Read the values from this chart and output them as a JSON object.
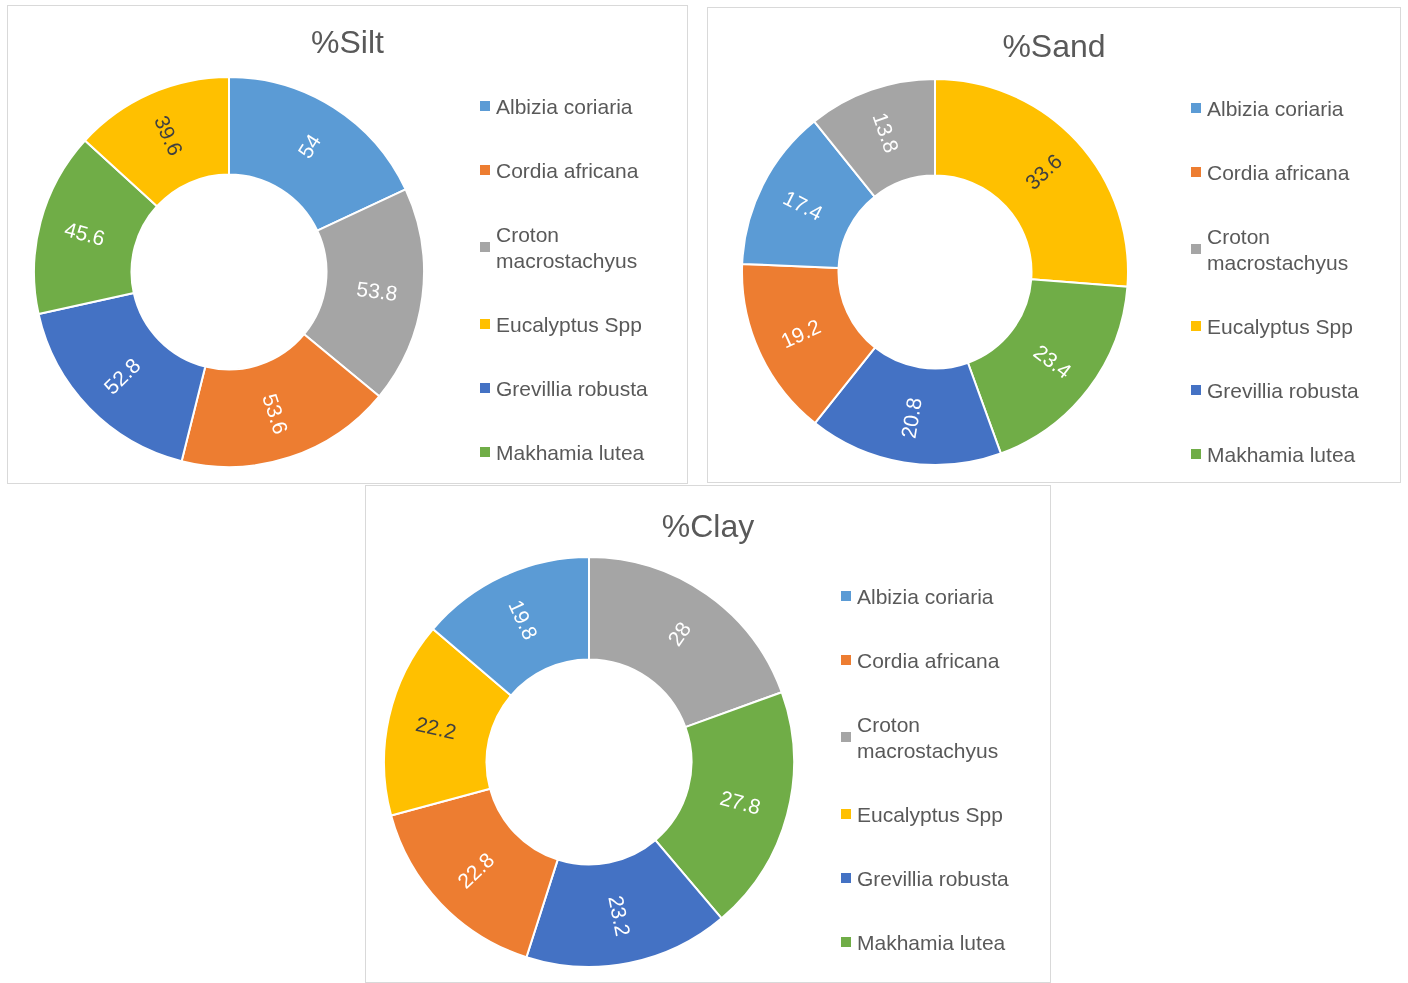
{
  "chart_data": [
    {
      "type": "donut",
      "title": "%Silt",
      "categories": [
        "Albizia coriaria",
        "Croton macrostachyus",
        "Cordia africana",
        "Grevillia robusta",
        "Makhamia lutea",
        "Eucalyptus Spp"
      ],
      "values": [
        54,
        53.8,
        53.6,
        52.8,
        45.6,
        39.6
      ],
      "colors": [
        "#5b9bd5",
        "#a5a5a5",
        "#ed7d31",
        "#4472c4",
        "#70ad47",
        "#ffc000"
      ],
      "data_labels": true,
      "legend": "right"
    },
    {
      "type": "donut",
      "title": "%Sand",
      "categories": [
        "Eucalyptus Spp",
        "Makhamia lutea",
        "Grevillia robusta",
        "Cordia africana",
        "Albizia coriaria",
        "Croton macrostachyus"
      ],
      "values": [
        33.6,
        23.4,
        20.8,
        19.2,
        17.4,
        13.8
      ],
      "colors": [
        "#ffc000",
        "#70ad47",
        "#4472c4",
        "#ed7d31",
        "#5b9bd5",
        "#a5a5a5"
      ],
      "data_labels": true,
      "legend": "right"
    },
    {
      "type": "donut",
      "title": "%Clay",
      "categories": [
        "Croton macrostachyus",
        "Makhamia lutea",
        "Grevillia robusta",
        "Cordia africana",
        "Eucalyptus Spp",
        "Albizia coriaria"
      ],
      "values": [
        28,
        27.8,
        23.2,
        22.8,
        22.2,
        19.8
      ],
      "colors": [
        "#a5a5a5",
        "#70ad47",
        "#4472c4",
        "#ed7d31",
        "#ffc000",
        "#5b9bd5"
      ],
      "data_labels": true,
      "legend": "right"
    }
  ]
}
